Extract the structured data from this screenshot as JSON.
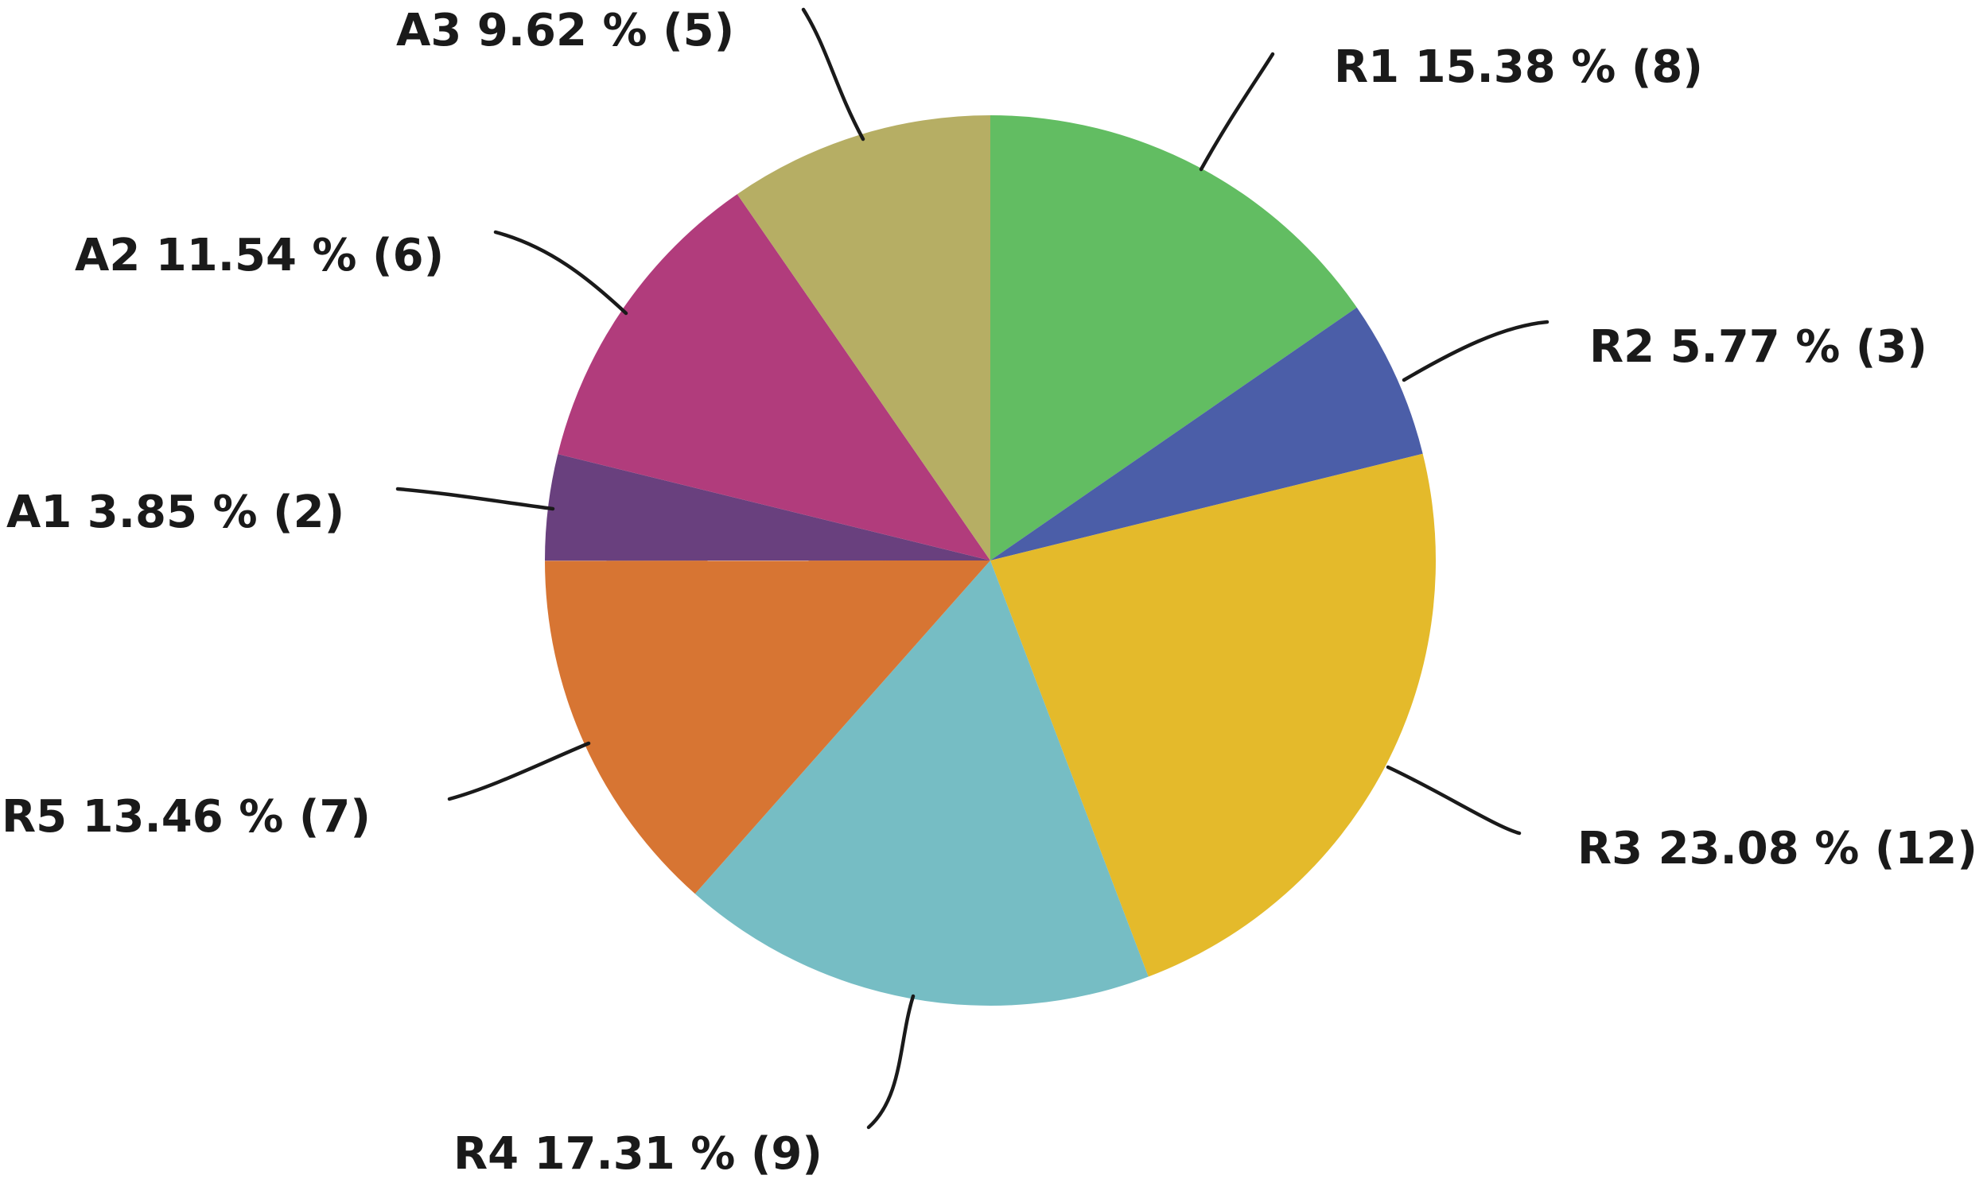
{
  "chart_data": {
    "type": "pie",
    "title": "",
    "start_angle_deg": 0,
    "direction": "clockwise",
    "slices": [
      {
        "name": "R1",
        "label": "R1 15.38 % (8)",
        "percent": 15.38,
        "count": 8,
        "color": "#62bd62"
      },
      {
        "name": "R2",
        "label": "R2 5.77 % (3)",
        "percent": 5.77,
        "count": 3,
        "color": "#4b5ea8"
      },
      {
        "name": "R3",
        "label": "R3 23.08 % (12)",
        "percent": 23.08,
        "count": 12,
        "color": "#e4ba2b"
      },
      {
        "name": "R4",
        "label": "R4 17.31 % (9)",
        "percent": 17.31,
        "count": 9,
        "color": "#76bdc4"
      },
      {
        "name": "R5",
        "label": "R5  13.46 % (7)",
        "percent": 13.46,
        "count": 7,
        "color": "#d77533"
      },
      {
        "name": "A1",
        "label": "A1 3.85 % (2)",
        "percent": 3.85,
        "count": 2,
        "color": "#69407e"
      },
      {
        "name": "A2",
        "label": "A2 11.54 % (6)",
        "percent": 11.54,
        "count": 6,
        "color": "#b13c7c"
      },
      {
        "name": "A3",
        "label": "A3 9.62 % (5)",
        "percent": 9.62,
        "count": 5,
        "color": "#b6ae64"
      }
    ]
  }
}
